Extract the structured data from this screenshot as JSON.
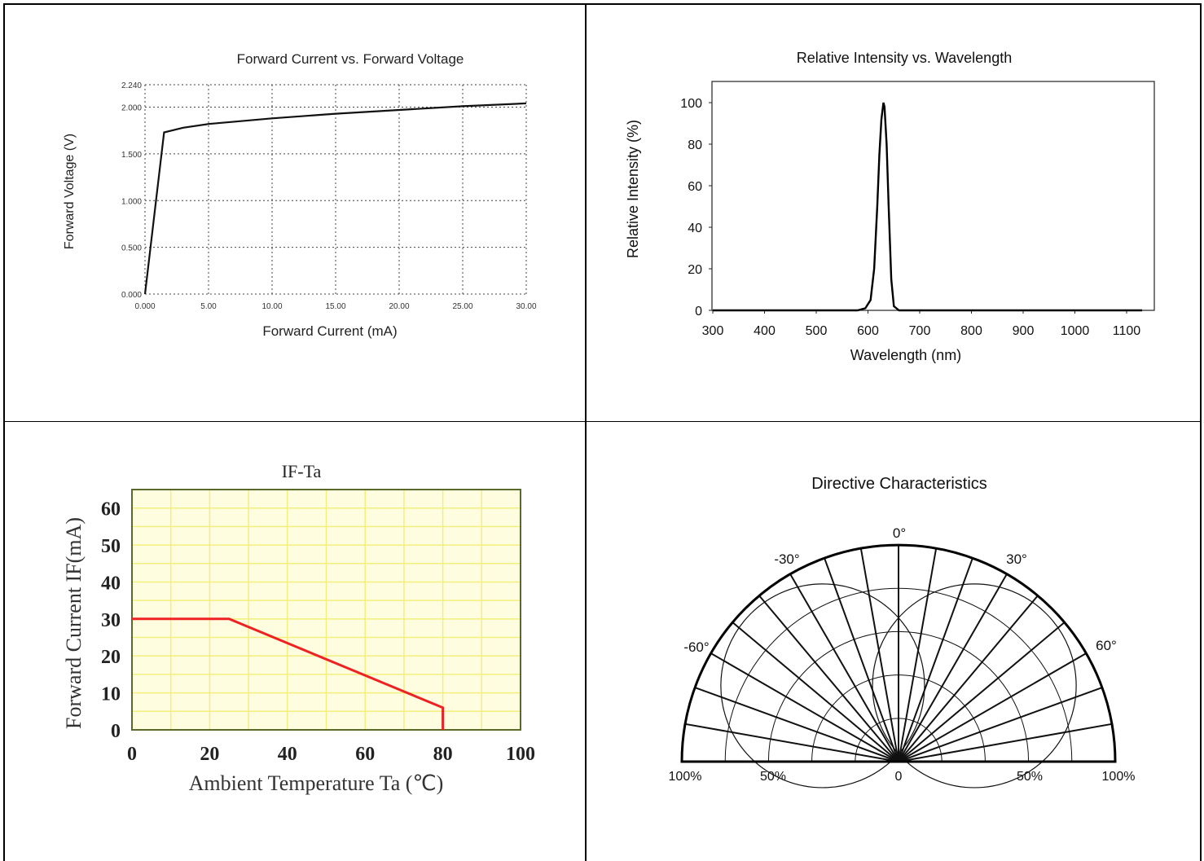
{
  "chart_data": [
    {
      "type": "line",
      "title": "Forward Current vs. Forward Voltage",
      "xlabel": "Forward Current (mA)",
      "ylabel": "Forward Voltage (V)",
      "xlim": [
        0,
        30
      ],
      "ylim": [
        0,
        2.24
      ],
      "x_ticks": [
        "0.000",
        "5.00",
        "10.00",
        "15.00",
        "20.00",
        "25.00",
        "30.00"
      ],
      "y_ticks": [
        "0.000",
        "0.500",
        "1.000",
        "1.500",
        "2.000",
        "2.240"
      ],
      "grid": true,
      "series": [
        {
          "x": [
            0,
            1.5,
            3,
            5,
            10,
            15,
            20,
            25,
            30
          ],
          "y": [
            0,
            1.73,
            1.78,
            1.82,
            1.88,
            1.93,
            1.97,
            2.01,
            2.04
          ]
        }
      ]
    },
    {
      "type": "line",
      "title": "Relative Intensity vs. Wavelength",
      "xlabel": "Wavelength (nm)",
      "ylabel": "Relative Intensity (%)",
      "xlim": [
        300,
        1150
      ],
      "ylim": [
        0,
        110
      ],
      "x_ticks": [
        "300",
        "400",
        "500",
        "600",
        "700",
        "800",
        "900",
        "1000",
        "1100"
      ],
      "y_ticks": [
        "0",
        "20",
        "40",
        "60",
        "80",
        "100"
      ],
      "grid": false,
      "series": [
        {
          "x": [
            300,
            580,
            595,
            605,
            612,
            618,
            622,
            626,
            630,
            632,
            636,
            640,
            645,
            650,
            660,
            700,
            1130
          ],
          "y": [
            0,
            0,
            1,
            5,
            20,
            50,
            75,
            92,
            100,
            98,
            80,
            50,
            15,
            2,
            0,
            0,
            0
          ]
        }
      ]
    },
    {
      "type": "line",
      "title": "IF-Ta",
      "xlabel": "Ambient Temperature Ta (℃)",
      "ylabel": "Forward Current IF(mA)",
      "xlim": [
        0,
        100
      ],
      "ylim": [
        0,
        65
      ],
      "x_ticks": [
        "0",
        "20",
        "40",
        "60",
        "80",
        "100"
      ],
      "y_ticks": [
        "0",
        "10",
        "20",
        "30",
        "40",
        "50",
        "60"
      ],
      "grid": true,
      "colors": {
        "line": "#ee2222",
        "grid": "#f2ef7c",
        "background": "#fffde0",
        "frame": "#5a6a2a"
      },
      "series": [
        {
          "x": [
            0,
            25,
            80,
            80
          ],
          "y": [
            30,
            30,
            6,
            0
          ]
        }
      ]
    },
    {
      "type": "polar",
      "title": "Directive Characteristics",
      "angle_labels": [
        "0°",
        "-30°",
        "30°",
        "-60°",
        "60°"
      ],
      "radial_labels": [
        "100%",
        "50%",
        "0",
        "50%",
        "100%"
      ],
      "series": [
        {
          "angle": [
            -90,
            -60,
            -30,
            0,
            30,
            60,
            90
          ],
          "relative_intensity": [
            0,
            0.5,
            0.87,
            1,
            0.87,
            0.5,
            0
          ]
        }
      ]
    }
  ]
}
